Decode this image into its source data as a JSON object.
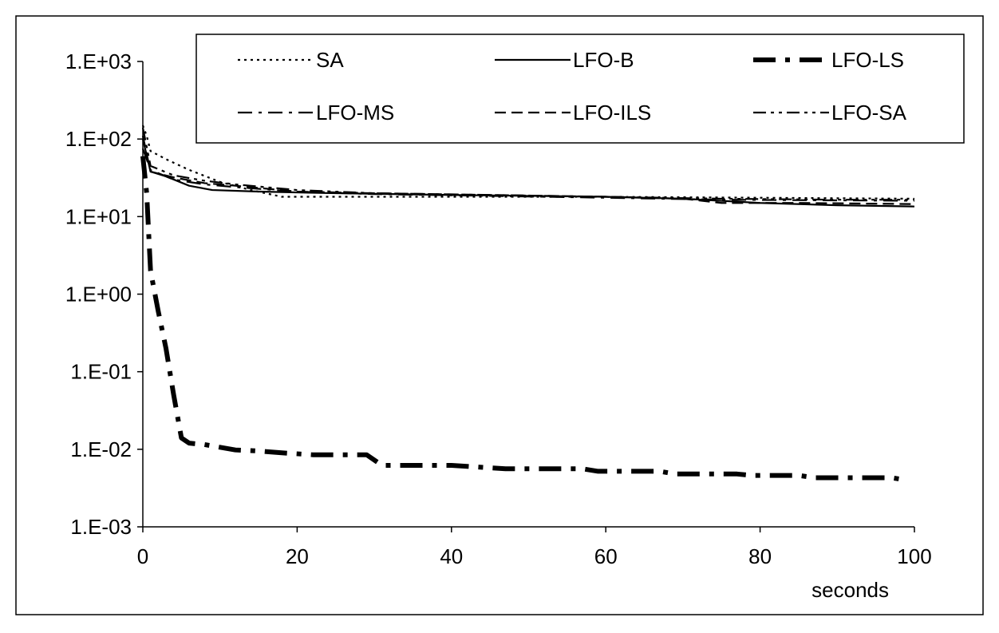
{
  "chart_data": {
    "type": "line",
    "title": "",
    "xlabel": "seconds",
    "ylabel": "",
    "xlim": [
      0,
      100
    ],
    "ylim": [
      0.001,
      1000
    ],
    "yscale": "log",
    "x_ticks": [
      0,
      20,
      40,
      60,
      80,
      100
    ],
    "x_tick_labels": [
      "0",
      "20",
      "40",
      "60",
      "80",
      "100"
    ],
    "y_ticks": [
      0.001,
      0.01,
      0.1,
      1,
      10,
      100,
      1000
    ],
    "y_tick_labels": [
      "1.E-03",
      "1.E-02",
      "1.E-01",
      "1.E+00",
      "1.E+01",
      "1.E+02",
      "1.E+03"
    ],
    "grid": false,
    "legend_position": "top",
    "series": [
      {
        "name": "SA",
        "style": "dotted",
        "points": [
          [
            0,
            150
          ],
          [
            0.5,
            110
          ],
          [
            1,
            70
          ],
          [
            3,
            55
          ],
          [
            6,
            40
          ],
          [
            10,
            28
          ],
          [
            14,
            22
          ],
          [
            18,
            18
          ],
          [
            25,
            18
          ],
          [
            40,
            18
          ],
          [
            60,
            18
          ],
          [
            80,
            17.5
          ],
          [
            100,
            17
          ]
        ]
      },
      {
        "name": "LFO-B",
        "style": "solid",
        "points": [
          [
            0,
            100
          ],
          [
            1,
            38
          ],
          [
            3,
            33
          ],
          [
            6,
            25
          ],
          [
            9,
            22
          ],
          [
            15,
            21
          ],
          [
            25,
            20
          ],
          [
            40,
            19
          ],
          [
            60,
            18
          ],
          [
            70,
            17
          ],
          [
            80,
            15
          ],
          [
            90,
            14
          ],
          [
            100,
            13.5
          ]
        ]
      },
      {
        "name": "LFO-LS",
        "style": "thick-dash-dot",
        "points": [
          [
            0,
            60
          ],
          [
            0.5,
            20
          ],
          [
            1,
            2
          ],
          [
            2,
            0.6
          ],
          [
            3,
            0.2
          ],
          [
            4,
            0.05
          ],
          [
            5,
            0.014
          ],
          [
            6,
            0.012
          ],
          [
            8,
            0.0115
          ],
          [
            12,
            0.0098
          ],
          [
            15,
            0.0095
          ],
          [
            18,
            0.009
          ],
          [
            22,
            0.0085
          ],
          [
            29,
            0.0085
          ],
          [
            31,
            0.0062
          ],
          [
            40,
            0.0062
          ],
          [
            47,
            0.0056
          ],
          [
            57,
            0.0056
          ],
          [
            59,
            0.0052
          ],
          [
            67,
            0.0052
          ],
          [
            69,
            0.0048
          ],
          [
            77,
            0.0048
          ],
          [
            79,
            0.0046
          ],
          [
            85,
            0.0046
          ],
          [
            87,
            0.0043
          ],
          [
            97,
            0.0043
          ],
          [
            99,
            0.004
          ]
        ]
      },
      {
        "name": "LFO-MS",
        "style": "dash-dot",
        "points": [
          [
            0,
            75
          ],
          [
            1,
            40
          ],
          [
            4,
            30
          ],
          [
            8,
            26
          ],
          [
            12,
            24
          ],
          [
            20,
            21
          ],
          [
            30,
            19.5
          ],
          [
            45,
            18.5
          ],
          [
            60,
            17.5
          ],
          [
            75,
            16.5
          ],
          [
            90,
            16.2
          ],
          [
            100,
            16
          ]
        ]
      },
      {
        "name": "LFO-ILS",
        "style": "dashed",
        "points": [
          [
            0,
            110
          ],
          [
            1,
            38
          ],
          [
            4,
            32
          ],
          [
            8,
            27
          ],
          [
            12,
            25
          ],
          [
            20,
            21
          ],
          [
            30,
            20
          ],
          [
            45,
            19
          ],
          [
            60,
            18
          ],
          [
            70,
            17
          ],
          [
            75,
            15
          ],
          [
            85,
            15
          ],
          [
            100,
            14.5
          ]
        ]
      },
      {
        "name": "LFO-SA",
        "style": "dash-dot-dot",
        "points": [
          [
            0,
            140
          ],
          [
            1,
            45
          ],
          [
            4,
            34
          ],
          [
            8,
            29
          ],
          [
            12,
            26
          ],
          [
            20,
            22
          ],
          [
            30,
            20
          ],
          [
            45,
            19
          ],
          [
            60,
            18
          ],
          [
            75,
            17
          ],
          [
            90,
            16.5
          ],
          [
            100,
            16.5
          ]
        ]
      }
    ]
  }
}
